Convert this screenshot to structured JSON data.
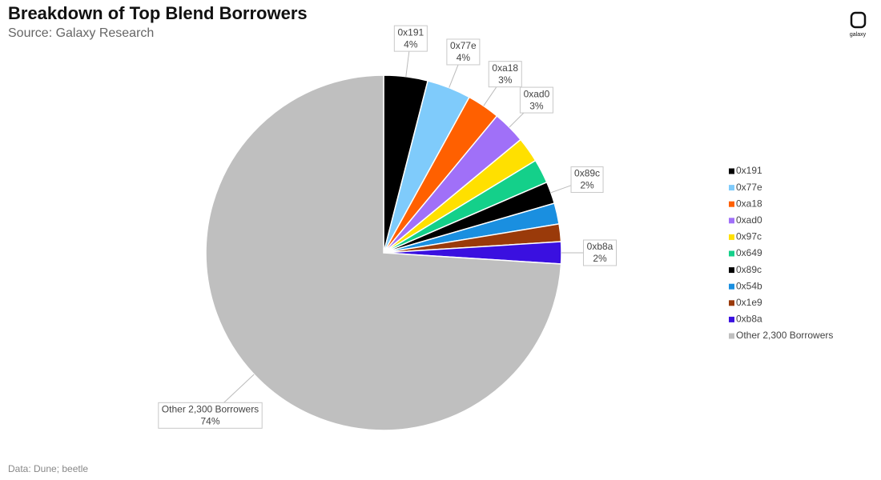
{
  "chart_data": {
    "type": "pie",
    "title": "Breakdown of Top Blend Borrowers",
    "subtitle": "Source: Galaxy Research",
    "source_note": "Data: Dune; beetle",
    "brand": "galaxy",
    "categories": [
      "0x191",
      "0x77e",
      "0xa18",
      "0xad0",
      "0x97c",
      "0x649",
      "0x89c",
      "0x54b",
      "0x1e9",
      "0xb8a",
      "Other 2,300 Borrowers"
    ],
    "values": [
      4,
      4,
      3,
      3,
      2.3,
      2.2,
      2,
      1.9,
      1.6,
      2,
      74
    ],
    "value_labels": [
      "4%",
      "4%",
      "3%",
      "3%",
      null,
      null,
      "2%",
      null,
      null,
      "2%",
      "74%"
    ],
    "colors": [
      "#000000",
      "#7fcbfb",
      "#ff6000",
      "#a070f8",
      "#ffe000",
      "#14d08a",
      "#000000",
      "#1a8fe0",
      "#9a3a0a",
      "#3a10e0",
      "#bfbfbf"
    ],
    "legend": "right"
  }
}
